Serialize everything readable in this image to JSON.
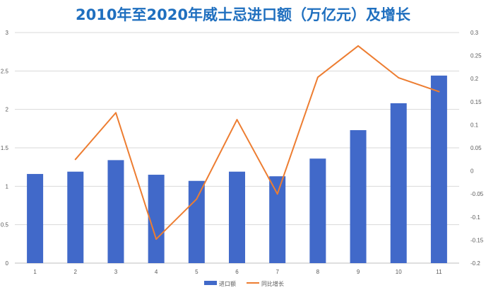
{
  "colors": {
    "bars": "#4169c9",
    "line": "#ed7d31",
    "title": "#1f6fbf",
    "grid": "#d9d9d9",
    "axis": "#bfbfbf"
  },
  "chart_data": {
    "type": "bar",
    "title": "2010年至2020年威士忌进口额（万亿元）及增长",
    "categories": [
      "1",
      "2",
      "3",
      "4",
      "5",
      "6",
      "7",
      "8",
      "9",
      "10",
      "11"
    ],
    "series": [
      {
        "name": "进口额",
        "type": "bar",
        "axis": "left",
        "values": [
          1.16,
          1.19,
          1.34,
          1.15,
          1.07,
          1.19,
          1.13,
          1.36,
          1.73,
          2.08,
          2.44
        ]
      },
      {
        "name": "同比增长",
        "type": "line",
        "axis": "right",
        "values": [
          null,
          0.025,
          0.126,
          -0.148,
          -0.061,
          0.111,
          -0.05,
          0.203,
          0.271,
          0.202,
          0.172
        ]
      }
    ],
    "y_left": {
      "min": 0,
      "max": 3,
      "ticks": [
        0,
        0.5,
        1,
        1.5,
        2,
        2.5,
        3
      ],
      "tick_labels": [
        "0",
        "0.5",
        "1",
        "1.5",
        "2",
        "2.5",
        "3"
      ]
    },
    "y_right": {
      "min": -0.2,
      "max": 0.3,
      "ticks": [
        -0.2,
        -0.15,
        -0.1,
        -0.05,
        0,
        0.05,
        0.1,
        0.15,
        0.2,
        0.25,
        0.3
      ],
      "tick_labels": [
        "-0.2",
        "-0.15",
        "-0.1",
        "-0.05",
        "0",
        "0.05",
        "0.1",
        "0.15",
        "0.2",
        "0.25",
        "0.3"
      ]
    },
    "grid": true,
    "legend": "bottom"
  }
}
